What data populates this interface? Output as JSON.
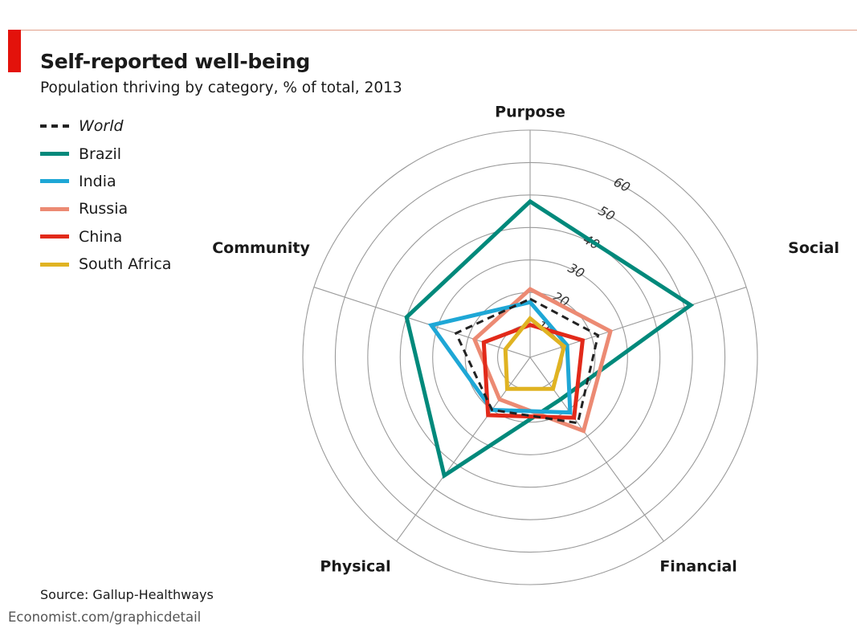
{
  "header": {
    "title": "Self-reported well-being",
    "subtitle": "Population thriving by category, % of total, 2013"
  },
  "footer": {
    "source": "Source: Gallup-Healthways",
    "site": "Economist.com/graphicdetail"
  },
  "chart_data": {
    "type": "radar",
    "axes": [
      "Purpose",
      "Social",
      "Financial",
      "Physical",
      "Community"
    ],
    "rlim": [
      0,
      70
    ],
    "ticks": [
      10,
      20,
      30,
      40,
      50,
      60
    ],
    "tick_labels": [
      "10",
      "20",
      "30",
      "40",
      "50",
      "60"
    ],
    "grid": true,
    "legend_position": "top-left",
    "series": [
      {
        "name": "World",
        "color": "#222222",
        "dashed": true,
        "values": [
          18,
          22,
          25,
          20,
          24
        ]
      },
      {
        "name": "Brazil",
        "color": "#00897b",
        "dashed": false,
        "values": [
          48,
          52,
          16,
          45,
          40
        ]
      },
      {
        "name": "India",
        "color": "#1ea7d6",
        "dashed": false,
        "values": [
          17,
          12,
          21,
          20,
          32
        ]
      },
      {
        "name": "Russia",
        "color": "#ec8a73",
        "dashed": false,
        "values": [
          21,
          26,
          28,
          16,
          18
        ]
      },
      {
        "name": "China",
        "color": "#e22a1a",
        "dashed": false,
        "values": [
          10,
          17,
          23,
          22,
          15
        ]
      },
      {
        "name": "South Africa",
        "color": "#e0b322",
        "dashed": false,
        "values": [
          12,
          11,
          12,
          12,
          8
        ]
      }
    ]
  }
}
